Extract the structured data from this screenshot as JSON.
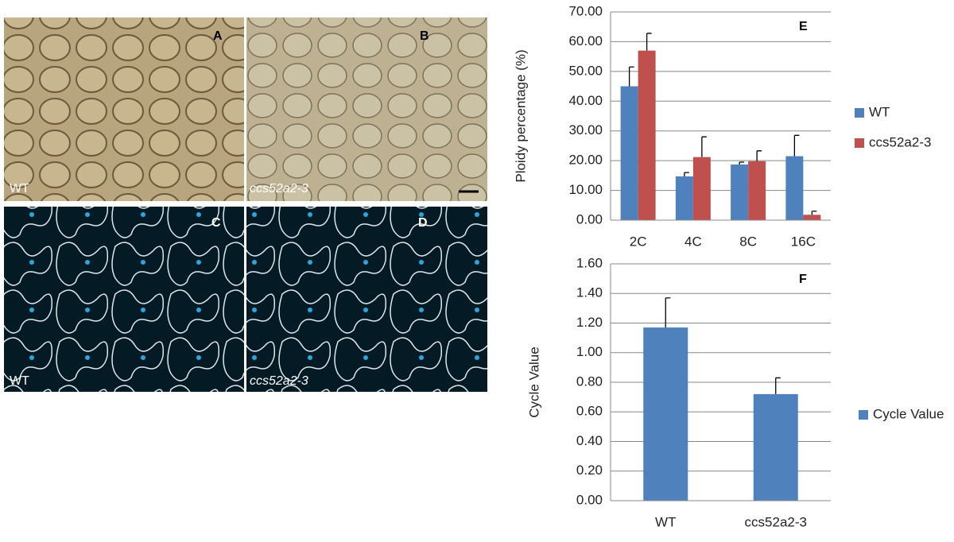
{
  "panels": [
    {
      "letter": "A",
      "genotype": "WT"
    },
    {
      "letter": "B",
      "genotype": "ccs52a2-3"
    },
    {
      "letter": "C",
      "genotype": "WT"
    },
    {
      "letter": "D",
      "genotype": "ccs52a2-3"
    }
  ],
  "chart_data": [
    {
      "type": "bar",
      "annotation": "E",
      "y_label": "Ploidy percentage (%)",
      "categories": [
        "2C",
        "4C",
        "8C",
        "16C"
      ],
      "series": [
        {
          "name": "WT",
          "color": "#4f81bd",
          "values": [
            45,
            14.7,
            18.7,
            21.5
          ],
          "errors": [
            6.5,
            1.3,
            0.8,
            7
          ]
        },
        {
          "name": "ccs52a2-3",
          "color": "#c0504d",
          "values": [
            57,
            21.2,
            19.8,
            1.8
          ],
          "errors": [
            5.8,
            6.8,
            3.5,
            1.2
          ]
        }
      ],
      "ylim": [
        0,
        70
      ],
      "yticks": [
        {
          "value": 0,
          "label": "0.00"
        },
        {
          "value": 10,
          "label": "10.00"
        },
        {
          "value": 20,
          "label": "20.00"
        },
        {
          "value": 30,
          "label": "30.00"
        },
        {
          "value": 40,
          "label": "40.00"
        },
        {
          "value": 50,
          "label": "50.00"
        },
        {
          "value": 60,
          "label": "60.00"
        },
        {
          "value": 70,
          "label": "70.00"
        }
      ],
      "grid": true,
      "legend": "right"
    },
    {
      "type": "bar",
      "annotation": "F",
      "y_label": "Cycle Value",
      "categories": [
        "WT",
        "ccs52a2-3"
      ],
      "series": [
        {
          "name": "Cycle Value",
          "color": "#4f81bd",
          "values": [
            1.17,
            0.72
          ],
          "errors": [
            0.2,
            0.11
          ]
        }
      ],
      "ylim": [
        0,
        1.6
      ],
      "yticks": [
        {
          "value": 0,
          "label": "0.00"
        },
        {
          "value": 0.2,
          "label": "0.20"
        },
        {
          "value": 0.4,
          "label": "0.40"
        },
        {
          "value": 0.6,
          "label": "0.60"
        },
        {
          "value": 0.8,
          "label": "0.80"
        },
        {
          "value": 1,
          "label": "1.00"
        },
        {
          "value": 1.2,
          "label": "1.20"
        },
        {
          "value": 1.4,
          "label": "1.40"
        },
        {
          "value": 1.6,
          "label": "1.60"
        }
      ],
      "grid": true,
      "legend": "right"
    }
  ]
}
